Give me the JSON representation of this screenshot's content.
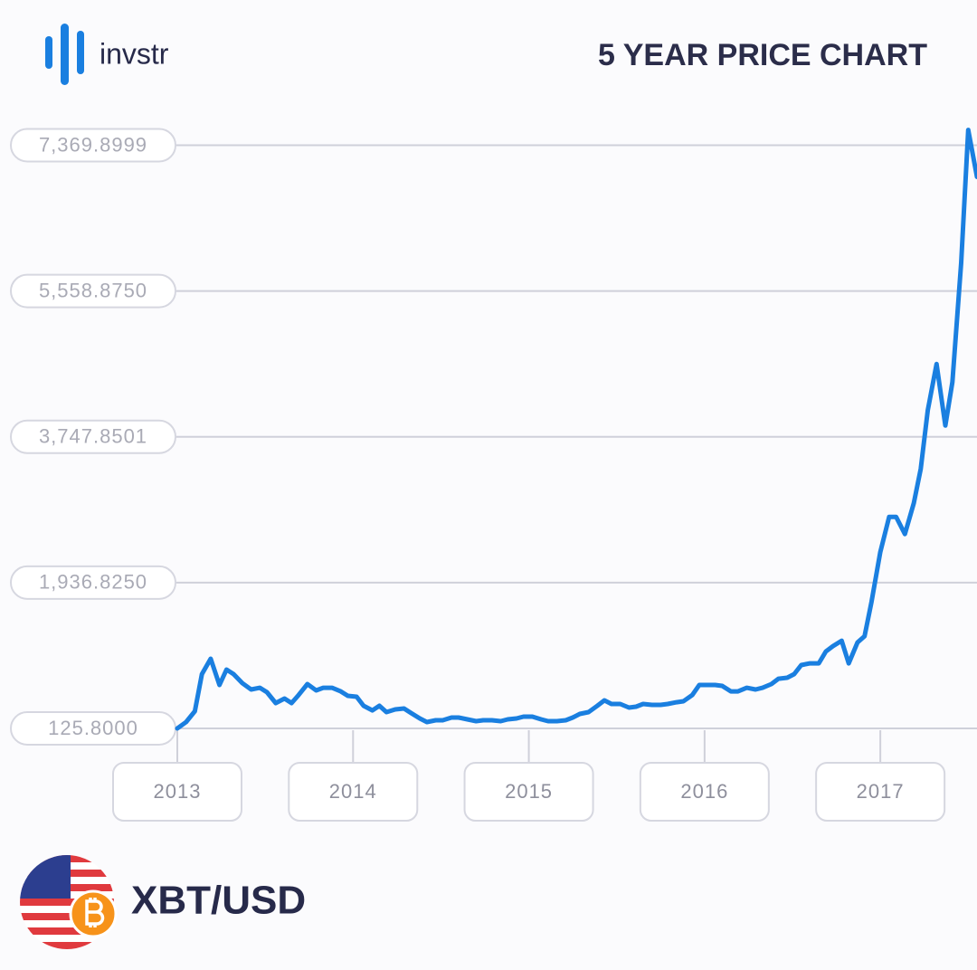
{
  "chart_data": {
    "type": "line",
    "brand": "invstr",
    "title": "5 YEAR PRICE CHART",
    "pair": "XBT/USD",
    "x": [
      2013.0,
      2013.05,
      2013.1,
      2013.14,
      2013.19,
      2013.24,
      2013.28,
      2013.32,
      2013.37,
      2013.42,
      2013.47,
      2013.51,
      2013.56,
      2013.61,
      2013.65,
      2013.69,
      2013.74,
      2013.79,
      2013.83,
      2013.88,
      2013.93,
      2013.97,
      2014.02,
      2014.06,
      2014.11,
      2014.15,
      2014.19,
      2014.24,
      2014.29,
      2014.33,
      2014.38,
      2014.42,
      2014.47,
      2014.51,
      2014.56,
      2014.6,
      2014.65,
      2014.7,
      2014.74,
      2014.79,
      2014.84,
      2014.88,
      2014.93,
      2014.97,
      2015.02,
      2015.07,
      2015.11,
      2015.16,
      2015.21,
      2015.25,
      2015.29,
      2015.34,
      2015.39,
      2015.43,
      2015.47,
      2015.52,
      2015.57,
      2015.61,
      2015.65,
      2015.7,
      2015.75,
      2015.79,
      2015.84,
      2015.88,
      2015.93,
      2015.97,
      2016.01,
      2016.06,
      2016.1,
      2016.15,
      2016.19,
      2016.24,
      2016.29,
      2016.33,
      2016.38,
      2016.42,
      2016.47,
      2016.51,
      2016.55,
      2016.6,
      2016.65,
      2016.69,
      2016.73,
      2016.78,
      2016.82,
      2016.87,
      2016.91,
      2016.95,
      2017.0,
      2017.05,
      2017.09,
      2017.14,
      2017.19,
      2017.23,
      2017.27,
      2017.32,
      2017.37,
      2017.41,
      2017.46,
      2017.5,
      2017.55
    ],
    "series": [
      {
        "name": "XBT/USD",
        "color": "#1a7fe0",
        "values": [
          126,
          205,
          339,
          800,
          991,
          665,
          856,
          800,
          688,
          609,
          631,
          575,
          440,
          497,
          440,
          541,
          676,
          598,
          631,
          631,
          586,
          530,
          519,
          407,
          350,
          407,
          328,
          362,
          373,
          317,
          249,
          205,
          227,
          227,
          261,
          261,
          238,
          216,
          227,
          227,
          216,
          238,
          249,
          272,
          272,
          238,
          216,
          216,
          227,
          261,
          306,
          328,
          407,
          474,
          429,
          429,
          384,
          395,
          429,
          418,
          418,
          429,
          451,
          463,
          541,
          665,
          665,
          665,
          654,
          586,
          586,
          631,
          609,
          631,
          676,
          743,
          755,
          800,
          912,
          934,
          934,
          1081,
          1148,
          1215,
          934,
          1193,
          1271,
          1698,
          2316,
          2754,
          2754,
          2540,
          2922,
          3349,
          4079,
          4652,
          3888,
          4427,
          5909,
          7560,
          6976
        ]
      }
    ],
    "xlim": [
      2013,
      2017.55
    ],
    "xticks": [
      2013,
      2014,
      2015,
      2016,
      2017
    ],
    "ylim": [
      125.8,
      7600
    ],
    "yticks": [
      {
        "value": 125.8,
        "label": "125.8000"
      },
      {
        "value": 1936.825,
        "label": "1,936.8250"
      },
      {
        "value": 3747.8501,
        "label": "3,747.8501"
      },
      {
        "value": 5558.875,
        "label": "5,558.8750"
      },
      {
        "value": 7369.8999,
        "label": "7,369.8999"
      }
    ],
    "grid": true
  }
}
